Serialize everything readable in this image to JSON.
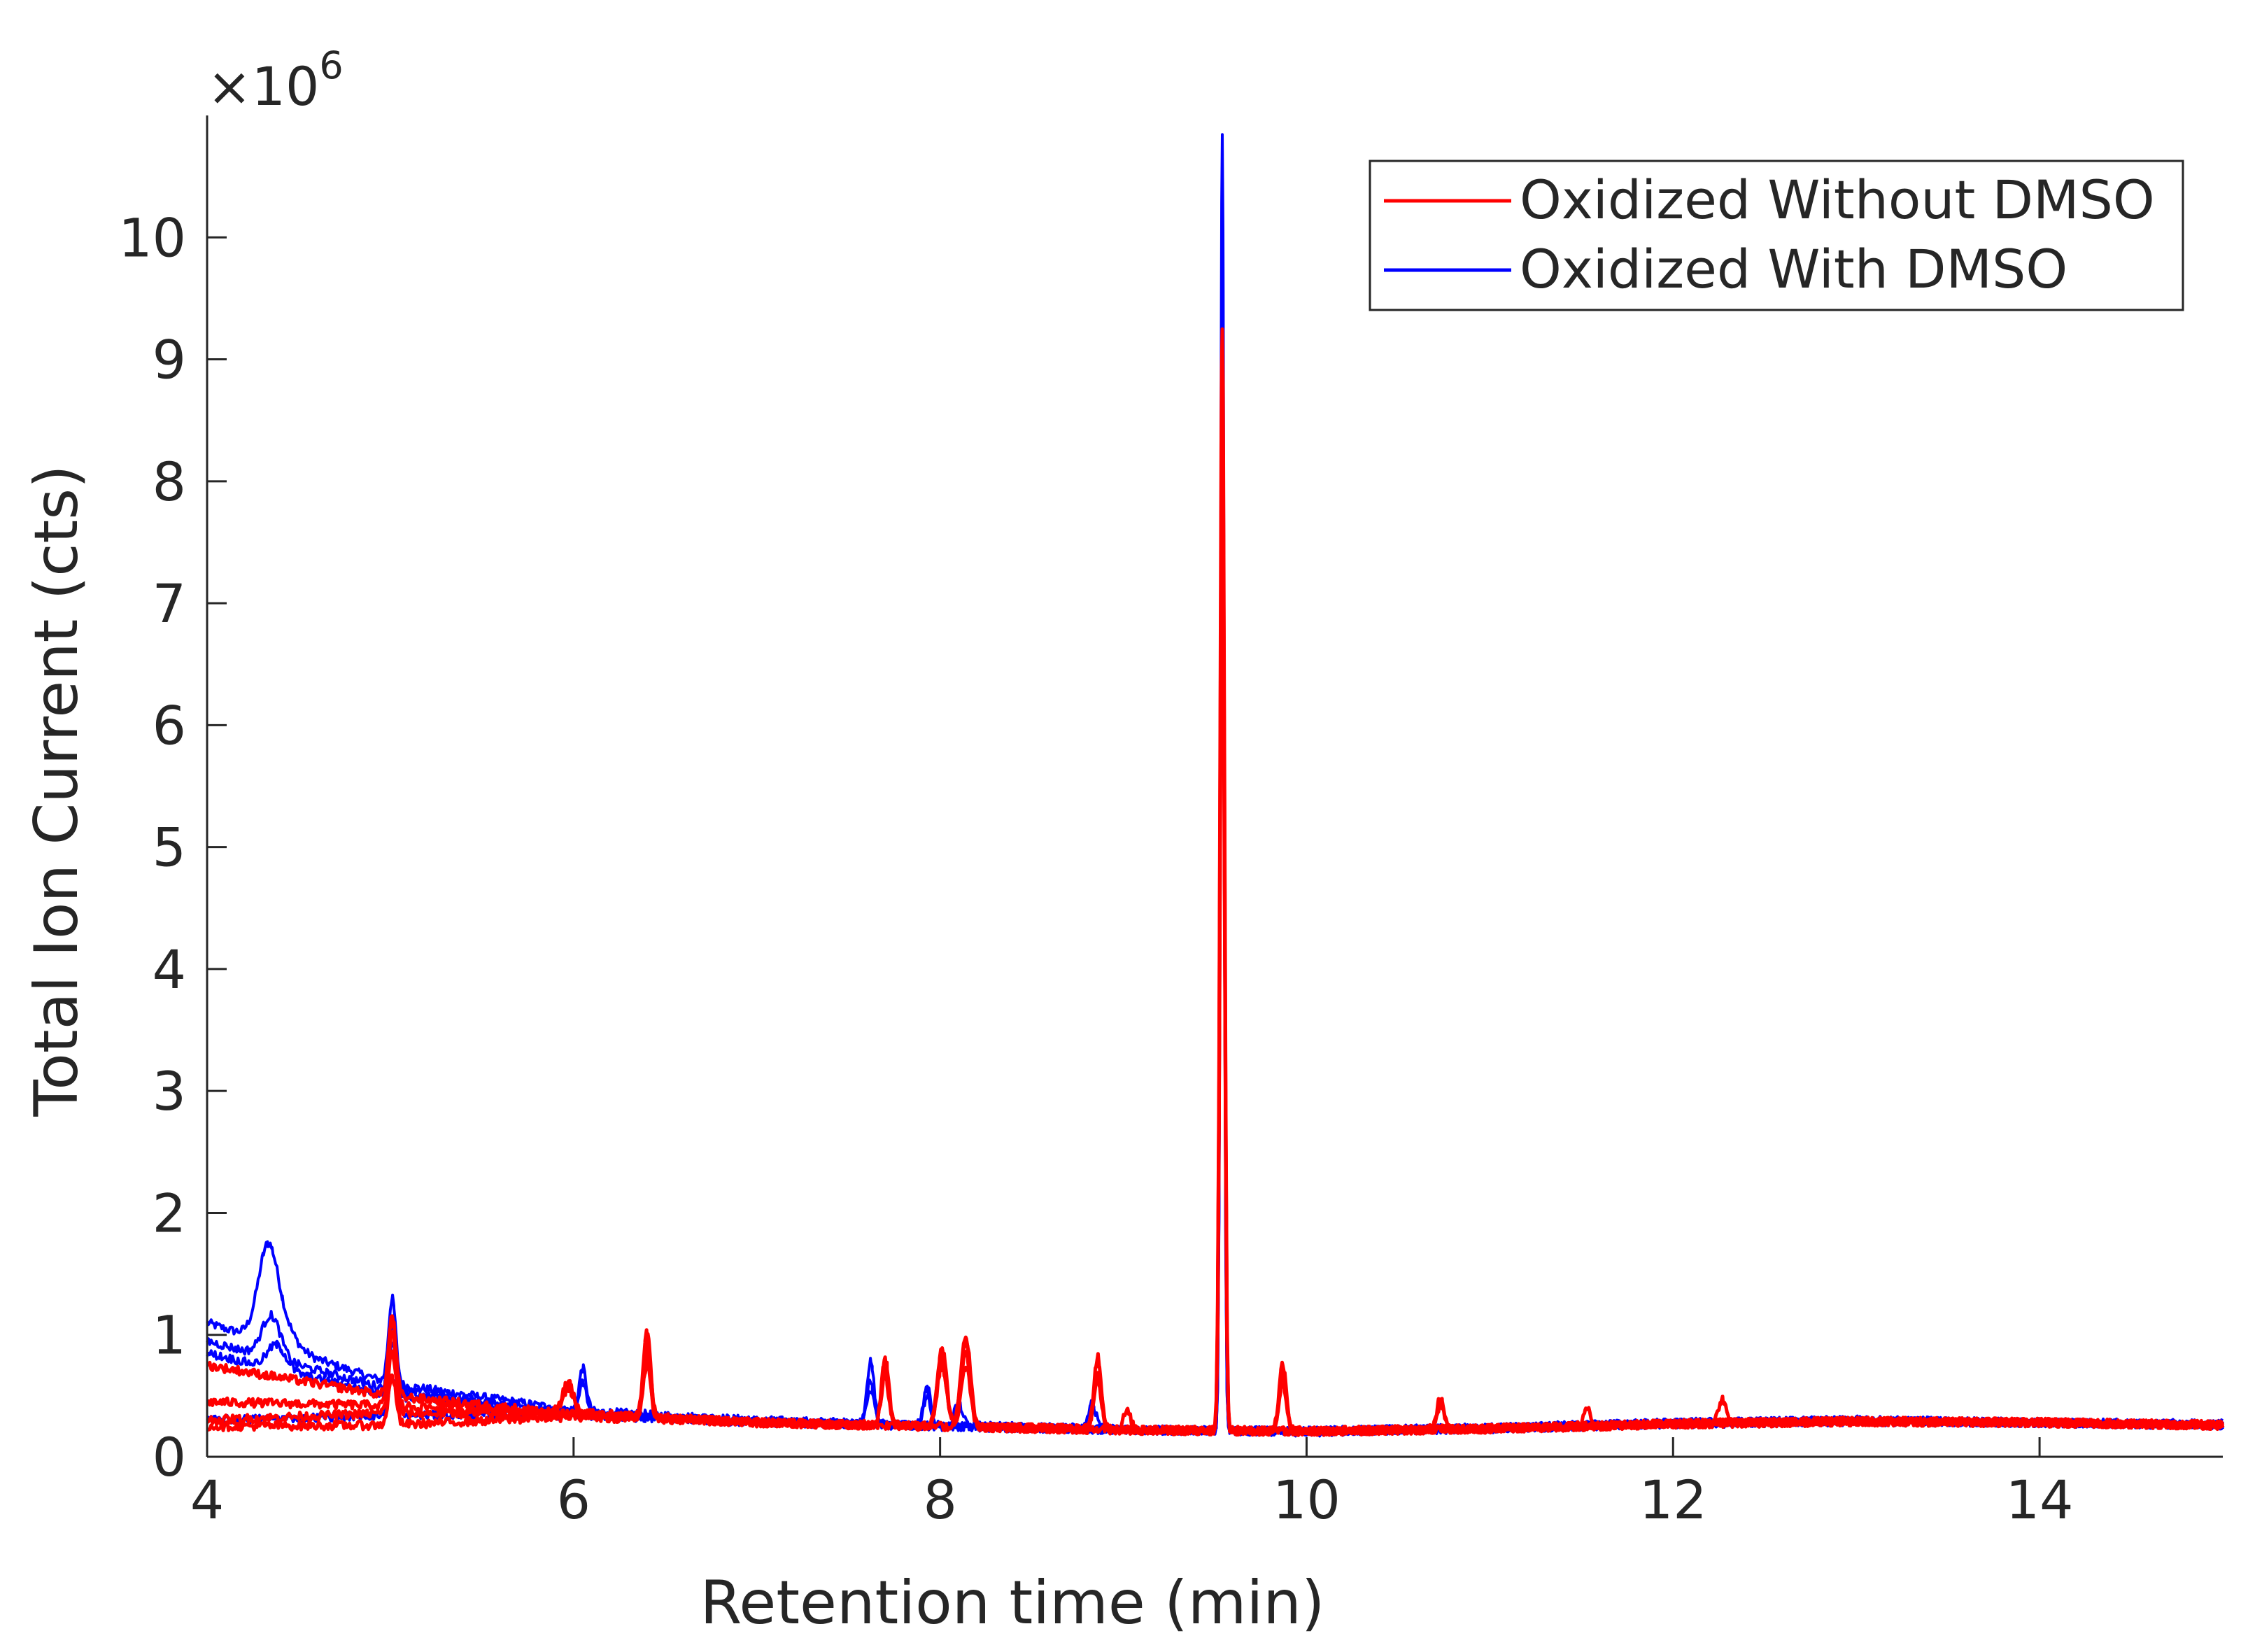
{
  "chart_data": {
    "type": "line",
    "title": "",
    "xlabel": "Retention time (min)",
    "ylabel": "Total Ion Current (cts)",
    "xlim": [
      4,
      15
    ],
    "ylim": [
      0,
      11
    ],
    "y_exponent_label": "×10",
    "y_exponent_power": "6",
    "x_ticks": [
      {
        "value": 4,
        "label": "4"
      },
      {
        "value": 6,
        "label": "6"
      },
      {
        "value": 8,
        "label": "8"
      },
      {
        "value": 10,
        "label": "10"
      },
      {
        "value": 12,
        "label": "12"
      },
      {
        "value": 14,
        "label": "14"
      }
    ],
    "y_ticks": [
      {
        "value": 0,
        "label": "0"
      },
      {
        "value": 1,
        "label": "1"
      },
      {
        "value": 2,
        "label": "2"
      },
      {
        "value": 3,
        "label": "3"
      },
      {
        "value": 4,
        "label": "4"
      },
      {
        "value": 5,
        "label": "5"
      },
      {
        "value": 6,
        "label": "6"
      },
      {
        "value": 7,
        "label": "7"
      },
      {
        "value": 8,
        "label": "8"
      },
      {
        "value": 9,
        "label": "9"
      },
      {
        "value": 10,
        "label": "10"
      }
    ],
    "legend_position": "top-right",
    "series": [
      {
        "name": "Oxidized With DMSO",
        "color": "#0000ff",
        "traces": [
          {
            "baseline": [
              [
                4,
                1.1
              ],
              [
                5,
                0.6
              ],
              [
                6,
                0.38
              ],
              [
                7,
                0.3
              ],
              [
                8,
                0.26
              ],
              [
                9,
                0.23
              ],
              [
                10,
                0.2
              ],
              [
                11,
                0.24
              ],
              [
                12,
                0.28
              ],
              [
                13,
                0.3
              ],
              [
                14,
                0.28
              ],
              [
                15,
                0.27
              ]
            ],
            "peaks": [
              [
                4.33,
                0.55,
                0.05
              ],
              [
                4.37,
                0.3,
                0.08
              ],
              [
                5.01,
                0.7,
                0.02
              ],
              [
                6.05,
                0.35,
                0.02
              ],
              [
                7.62,
                0.5,
                0.02
              ],
              [
                7.93,
                0.3,
                0.02
              ],
              [
                8.1,
                0.2,
                0.02
              ],
              [
                8.83,
                0.2,
                0.02
              ],
              [
                9.54,
                10.65,
                0.01
              ]
            ]
          },
          {
            "baseline": [
              [
                4,
                0.95
              ],
              [
                5,
                0.55
              ],
              [
                6,
                0.36
              ],
              [
                7,
                0.29
              ],
              [
                8,
                0.25
              ],
              [
                9,
                0.22
              ],
              [
                10,
                0.21
              ],
              [
                11,
                0.24
              ],
              [
                12,
                0.28
              ],
              [
                13,
                0.3
              ],
              [
                14,
                0.28
              ],
              [
                15,
                0.26
              ]
            ],
            "peaks": [
              [
                4.35,
                0.35,
                0.05
              ],
              [
                5.01,
                0.55,
                0.02
              ],
              [
                6.05,
                0.25,
                0.02
              ],
              [
                7.62,
                0.35,
                0.02
              ],
              [
                7.93,
                0.25,
                0.02
              ],
              [
                9.54,
                9.5,
                0.01
              ]
            ]
          },
          {
            "baseline": [
              [
                4,
                0.85
              ],
              [
                5,
                0.5
              ],
              [
                6,
                0.35
              ],
              [
                7,
                0.28
              ],
              [
                8,
                0.25
              ],
              [
                9,
                0.22
              ],
              [
                10,
                0.21
              ],
              [
                11,
                0.23
              ],
              [
                12,
                0.27
              ],
              [
                13,
                0.29
              ],
              [
                14,
                0.28
              ],
              [
                15,
                0.26
              ]
            ],
            "peaks": [
              [
                4.38,
                0.2,
                0.05
              ],
              [
                5.01,
                0.45,
                0.02
              ],
              [
                7.62,
                0.3,
                0.02
              ],
              [
                9.54,
                9.0,
                0.01
              ]
            ]
          },
          {
            "baseline": [
              [
                4,
                0.3
              ],
              [
                5,
                0.34
              ],
              [
                6,
                0.34
              ],
              [
                7,
                0.29
              ],
              [
                8,
                0.25
              ],
              [
                9,
                0.22
              ],
              [
                10,
                0.21
              ],
              [
                11,
                0.23
              ],
              [
                12,
                0.27
              ],
              [
                13,
                0.29
              ],
              [
                14,
                0.28
              ],
              [
                15,
                0.26
              ]
            ],
            "peaks": [
              [
                5.01,
                0.3,
                0.02
              ],
              [
                9.54,
                8.5,
                0.01
              ]
            ]
          }
        ]
      },
      {
        "name": "Oxidized Without DMSO",
        "color": "#ff0000",
        "traces": [
          {
            "baseline": [
              [
                4,
                0.75
              ],
              [
                5,
                0.5
              ],
              [
                6,
                0.35
              ],
              [
                7,
                0.28
              ],
              [
                8,
                0.25
              ],
              [
                9,
                0.22
              ],
              [
                10,
                0.21
              ],
              [
                11,
                0.23
              ],
              [
                12,
                0.27
              ],
              [
                13,
                0.29
              ],
              [
                14,
                0.28
              ],
              [
                15,
                0.26
              ]
            ],
            "peaks": [
              [
                5.01,
                0.65,
                0.02
              ],
              [
                5.97,
                0.25,
                0.03
              ],
              [
                6.4,
                0.7,
                0.02
              ],
              [
                7.7,
                0.55,
                0.02
              ],
              [
                8.01,
                0.65,
                0.025
              ],
              [
                8.14,
                0.75,
                0.025
              ],
              [
                8.86,
                0.6,
                0.02
              ],
              [
                9.02,
                0.15,
                0.02
              ],
              [
                9.54,
                9.05,
                0.012
              ],
              [
                9.87,
                0.55,
                0.02
              ],
              [
                10.73,
                0.25,
                0.02
              ],
              [
                11.53,
                0.15,
                0.02
              ],
              [
                12.27,
                0.2,
                0.02
              ]
            ]
          },
          {
            "baseline": [
              [
                4,
                0.45
              ],
              [
                5,
                0.42
              ],
              [
                6,
                0.36
              ],
              [
                7,
                0.28
              ],
              [
                8,
                0.25
              ],
              [
                9,
                0.22
              ],
              [
                10,
                0.21
              ],
              [
                11,
                0.23
              ],
              [
                12,
                0.27
              ],
              [
                13,
                0.29
              ],
              [
                14,
                0.28
              ],
              [
                15,
                0.26
              ]
            ],
            "peaks": [
              [
                5.01,
                0.6,
                0.02
              ],
              [
                5.97,
                0.2,
                0.03
              ],
              [
                6.4,
                0.6,
                0.02
              ],
              [
                7.7,
                0.45,
                0.02
              ],
              [
                8.01,
                0.55,
                0.025
              ],
              [
                8.14,
                0.7,
                0.025
              ],
              [
                8.86,
                0.5,
                0.02
              ],
              [
                9.54,
                8.5,
                0.012
              ],
              [
                9.87,
                0.45,
                0.02
              ],
              [
                10.73,
                0.2,
                0.02
              ]
            ]
          },
          {
            "baseline": [
              [
                4,
                0.3
              ],
              [
                5,
                0.36
              ],
              [
                6,
                0.35
              ],
              [
                7,
                0.28
              ],
              [
                8,
                0.25
              ],
              [
                9,
                0.22
              ],
              [
                10,
                0.21
              ],
              [
                11,
                0.23
              ],
              [
                12,
                0.27
              ],
              [
                13,
                0.29
              ],
              [
                14,
                0.28
              ],
              [
                15,
                0.26
              ]
            ],
            "peaks": [
              [
                5.01,
                0.5,
                0.02
              ],
              [
                6.4,
                0.5,
                0.02
              ],
              [
                7.7,
                0.4,
                0.02
              ],
              [
                8.01,
                0.5,
                0.025
              ],
              [
                8.14,
                0.6,
                0.025
              ],
              [
                8.86,
                0.4,
                0.02
              ],
              [
                9.54,
                8.0,
                0.012
              ],
              [
                9.87,
                0.4,
                0.02
              ]
            ]
          },
          {
            "baseline": [
              [
                4,
                0.25
              ],
              [
                5,
                0.26
              ],
              [
                6,
                0.33
              ],
              [
                7,
                0.28
              ],
              [
                8,
                0.25
              ],
              [
                9,
                0.22
              ],
              [
                10,
                0.21
              ],
              [
                11,
                0.23
              ],
              [
                12,
                0.27
              ],
              [
                13,
                0.29
              ],
              [
                14,
                0.28
              ],
              [
                15,
                0.26
              ]
            ],
            "peaks": [
              [
                5.01,
                0.4,
                0.02
              ],
              [
                6.4,
                0.45,
                0.02
              ],
              [
                8.14,
                0.5,
                0.025
              ],
              [
                9.54,
                7.5,
                0.012
              ]
            ]
          }
        ]
      }
    ],
    "legend": [
      {
        "name": "Oxidized Without DMSO",
        "color": "#ff0000"
      },
      {
        "name": "Oxidized With DMSO",
        "color": "#0000ff"
      }
    ]
  }
}
